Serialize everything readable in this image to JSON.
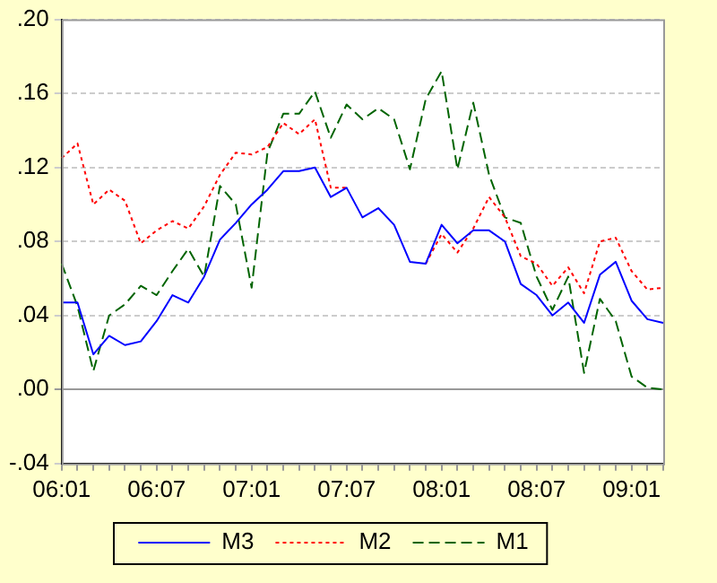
{
  "chart_data": {
    "type": "line",
    "categories": [
      "06:01",
      null,
      null,
      null,
      null,
      null,
      "06:07",
      null,
      null,
      null,
      null,
      null,
      "07:01",
      null,
      null,
      null,
      null,
      null,
      "07:07",
      null,
      null,
      null,
      null,
      null,
      "08:01",
      null,
      null,
      null,
      null,
      null,
      "08:07",
      null,
      null,
      null,
      null,
      null,
      "09:01",
      null,
      null
    ],
    "series": [
      {
        "name": "M3",
        "color": "#0000ff",
        "line_style": "solid",
        "values": [
          0.047,
          0.047,
          0.019,
          0.029,
          0.024,
          0.026,
          0.037,
          0.051,
          0.047,
          0.061,
          0.081,
          0.09,
          0.1,
          0.108,
          0.118,
          0.118,
          0.12,
          0.104,
          0.109,
          0.093,
          0.098,
          0.089,
          0.069,
          0.068,
          0.089,
          0.079,
          0.086,
          0.086,
          0.08,
          0.057,
          0.051,
          0.04,
          0.047,
          0.036,
          0.062,
          0.069,
          0.048,
          0.038,
          0.036
        ]
      },
      {
        "name": "M2",
        "color": "#ff0000",
        "line_style": "dotted",
        "values": [
          0.125,
          0.133,
          0.1,
          0.108,
          0.102,
          0.079,
          0.086,
          0.091,
          0.087,
          0.099,
          0.116,
          0.128,
          0.127,
          0.131,
          0.144,
          0.138,
          0.146,
          0.109,
          0.109,
          null,
          null,
          null,
          null,
          0.068,
          0.084,
          0.074,
          0.087,
          0.104,
          0.093,
          0.072,
          0.068,
          0.056,
          0.066,
          0.052,
          0.08,
          0.082,
          0.064,
          0.054,
          0.055
        ]
      },
      {
        "name": "M1",
        "color": "#006400",
        "line_style": "dashed",
        "values": [
          0.068,
          0.045,
          0.01,
          0.04,
          0.046,
          0.056,
          0.051,
          0.064,
          0.076,
          0.061,
          0.11,
          0.1,
          0.055,
          0.128,
          0.149,
          0.149,
          0.161,
          0.136,
          0.154,
          0.146,
          0.152,
          0.146,
          0.119,
          0.157,
          0.172,
          0.119,
          0.155,
          0.116,
          0.093,
          0.09,
          0.061,
          0.043,
          0.061,
          0.009,
          0.049,
          0.037,
          0.007,
          0.001,
          0.0
        ]
      }
    ],
    "ylim": [
      -0.04,
      0.2
    ],
    "yticks": [
      {
        "value": -0.04,
        "label": "-.04"
      },
      {
        "value": 0,
        "label": ".00"
      },
      {
        "value": 0.04,
        "label": ".04"
      },
      {
        "value": 0.08,
        "label": ".08"
      },
      {
        "value": 0.12,
        "label": ".12"
      },
      {
        "value": 0.16,
        "label": ".16"
      },
      {
        "value": 0.2,
        "label": ".20"
      }
    ],
    "grid": "y",
    "legend": "bottom",
    "marker": "none"
  }
}
